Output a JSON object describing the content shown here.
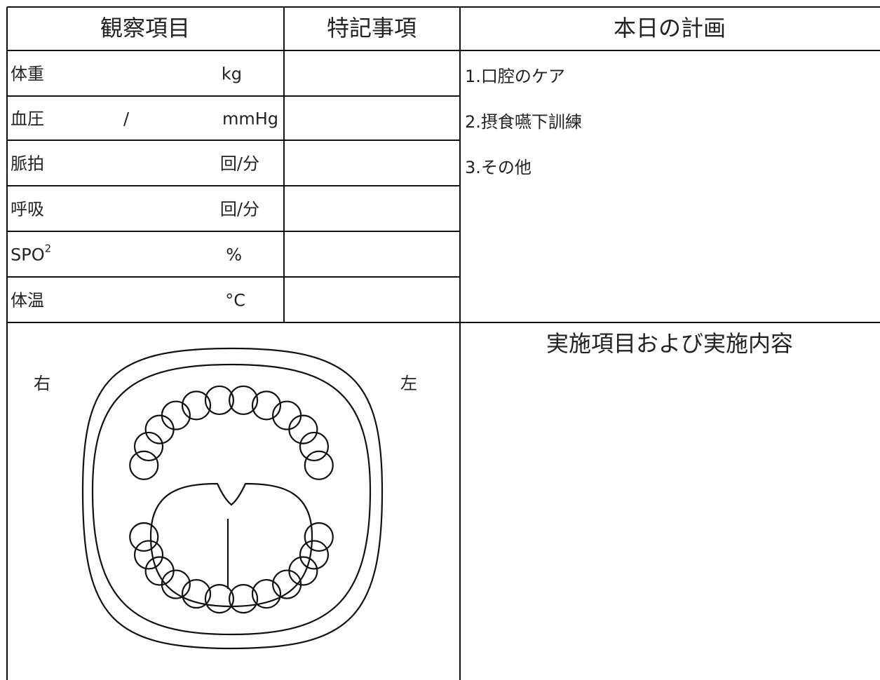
{
  "header": {
    "observation": "観察項目",
    "notes": "特記事項",
    "plan": "本日の計画"
  },
  "rows": [
    {
      "label": "体重",
      "unit": "kg"
    },
    {
      "label": "血圧",
      "separator": "/",
      "unit": "mmHg"
    },
    {
      "label": "脈拍",
      "unit": "回/分"
    },
    {
      "label": "呼吸",
      "unit": "回/分"
    },
    {
      "label": "SPO",
      "superscript": "2",
      "unit": "%"
    },
    {
      "label": "体温",
      "unit": "°C"
    }
  ],
  "plan_items": [
    "1.口腔のケア",
    "2.摂食嚥下訓練",
    "3.その他"
  ],
  "diagram": {
    "right": "右",
    "left": "左"
  },
  "implementation_title": "実施項目および実施内容"
}
